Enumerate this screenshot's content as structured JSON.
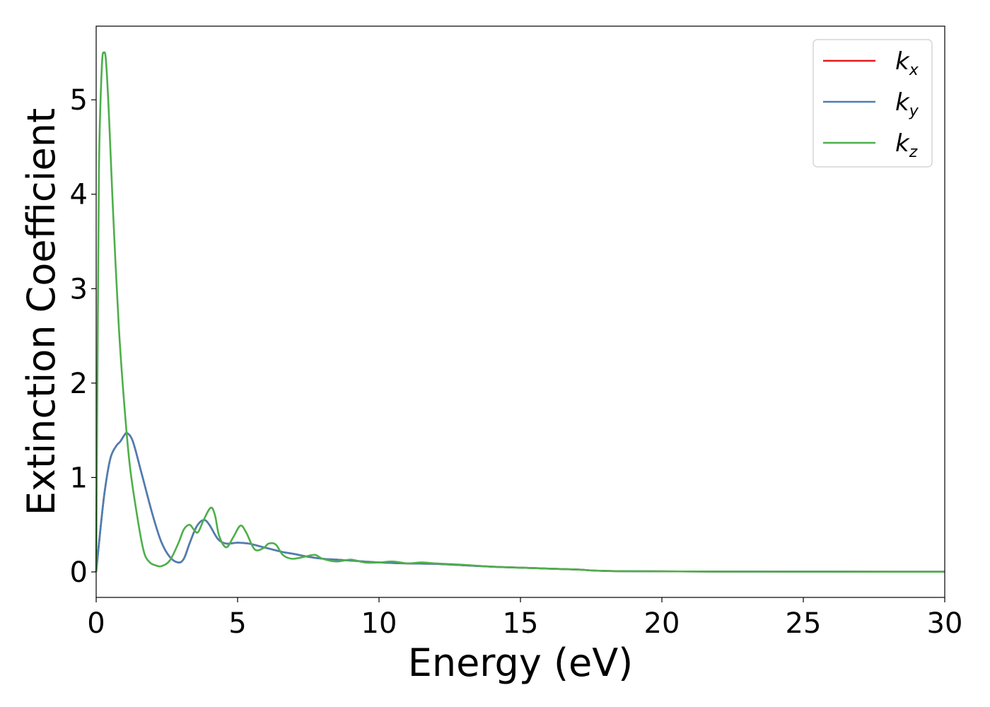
{
  "chart_data": {
    "type": "line",
    "title": "",
    "xlabel": "Energy (eV)",
    "ylabel": "Extinction Coefficient",
    "xlim": [
      0,
      30
    ],
    "ylim": [
      -0.27,
      5.78
    ],
    "xticks": [
      0,
      5,
      10,
      15,
      20,
      25,
      30
    ],
    "yticks": [
      0,
      1,
      2,
      3,
      4,
      5
    ],
    "grid": false,
    "legend_position": "top-right",
    "series": [
      {
        "name": "k",
        "subscript": "x",
        "color": "#e41a1c",
        "x": [
          0,
          0.15,
          0.3,
          0.5,
          0.7,
          0.85,
          1.0,
          1.1,
          1.3,
          1.6,
          2.0,
          2.3,
          2.6,
          2.9,
          3.1,
          3.3,
          3.55,
          3.8,
          4.0,
          4.3,
          4.6,
          5.0,
          5.4,
          5.8,
          6.2,
          6.6,
          7.0,
          7.5,
          8.0,
          8.5,
          9.0,
          9.5,
          10.0,
          11.0,
          12.0,
          13.0,
          14.0,
          15.0,
          16.0,
          17.0,
          18.0,
          20.0,
          22.0,
          25.0,
          28.0,
          30.0
        ],
        "y": [
          0,
          0.45,
          0.85,
          1.2,
          1.33,
          1.38,
          1.45,
          1.47,
          1.38,
          1.05,
          0.6,
          0.32,
          0.16,
          0.1,
          0.14,
          0.3,
          0.48,
          0.55,
          0.5,
          0.35,
          0.3,
          0.31,
          0.3,
          0.27,
          0.24,
          0.21,
          0.19,
          0.16,
          0.14,
          0.13,
          0.12,
          0.11,
          0.1,
          0.09,
          0.085,
          0.07,
          0.055,
          0.045,
          0.035,
          0.025,
          0.01,
          0.006,
          0.004,
          0.003,
          0.002,
          0.002
        ]
      },
      {
        "name": "k",
        "subscript": "y",
        "color": "#4a7fb5",
        "x": [
          0,
          0.15,
          0.3,
          0.5,
          0.7,
          0.85,
          1.0,
          1.1,
          1.3,
          1.6,
          2.0,
          2.3,
          2.6,
          2.9,
          3.1,
          3.3,
          3.55,
          3.8,
          4.0,
          4.3,
          4.6,
          5.0,
          5.4,
          5.8,
          6.2,
          6.6,
          7.0,
          7.5,
          8.0,
          8.5,
          9.0,
          9.5,
          10.0,
          11.0,
          12.0,
          13.0,
          14.0,
          15.0,
          16.0,
          17.0,
          18.0,
          20.0,
          22.0,
          25.0,
          28.0,
          30.0
        ],
        "y": [
          0,
          0.45,
          0.85,
          1.2,
          1.33,
          1.38,
          1.45,
          1.47,
          1.38,
          1.05,
          0.6,
          0.32,
          0.16,
          0.1,
          0.14,
          0.3,
          0.48,
          0.55,
          0.5,
          0.35,
          0.3,
          0.31,
          0.3,
          0.27,
          0.24,
          0.21,
          0.19,
          0.16,
          0.14,
          0.13,
          0.12,
          0.11,
          0.1,
          0.09,
          0.085,
          0.07,
          0.055,
          0.045,
          0.035,
          0.025,
          0.01,
          0.006,
          0.004,
          0.003,
          0.002,
          0.002
        ]
      },
      {
        "name": "k",
        "subscript": "z",
        "color": "#4daf4a",
        "x": [
          0,
          0.05,
          0.1,
          0.2,
          0.28,
          0.35,
          0.45,
          0.6,
          0.8,
          1.0,
          1.2,
          1.5,
          1.7,
          1.9,
          2.1,
          2.3,
          2.6,
          2.9,
          3.1,
          3.3,
          3.45,
          3.6,
          3.8,
          4.05,
          4.2,
          4.35,
          4.6,
          4.85,
          5.1,
          5.3,
          5.6,
          5.9,
          6.1,
          6.35,
          6.6,
          6.9,
          7.2,
          7.5,
          7.75,
          8.0,
          8.5,
          9.0,
          9.5,
          10.0,
          10.5,
          11.0,
          11.5,
          12.0,
          13.0,
          14.0,
          15.0,
          16.0,
          17.0,
          18.0,
          20.0,
          22.0,
          25.0,
          28.0,
          30.0
        ],
        "y": [
          0,
          2.3,
          4.3,
          5.35,
          5.5,
          5.4,
          4.85,
          3.8,
          2.6,
          1.75,
          1.1,
          0.5,
          0.2,
          0.1,
          0.07,
          0.06,
          0.12,
          0.3,
          0.45,
          0.5,
          0.45,
          0.42,
          0.55,
          0.68,
          0.6,
          0.38,
          0.26,
          0.37,
          0.49,
          0.42,
          0.24,
          0.25,
          0.3,
          0.29,
          0.18,
          0.14,
          0.15,
          0.17,
          0.18,
          0.14,
          0.11,
          0.13,
          0.1,
          0.1,
          0.11,
          0.09,
          0.1,
          0.09,
          0.075,
          0.055,
          0.045,
          0.035,
          0.025,
          0.01,
          0.006,
          0.004,
          0.003,
          0.002,
          0.002
        ]
      }
    ]
  }
}
